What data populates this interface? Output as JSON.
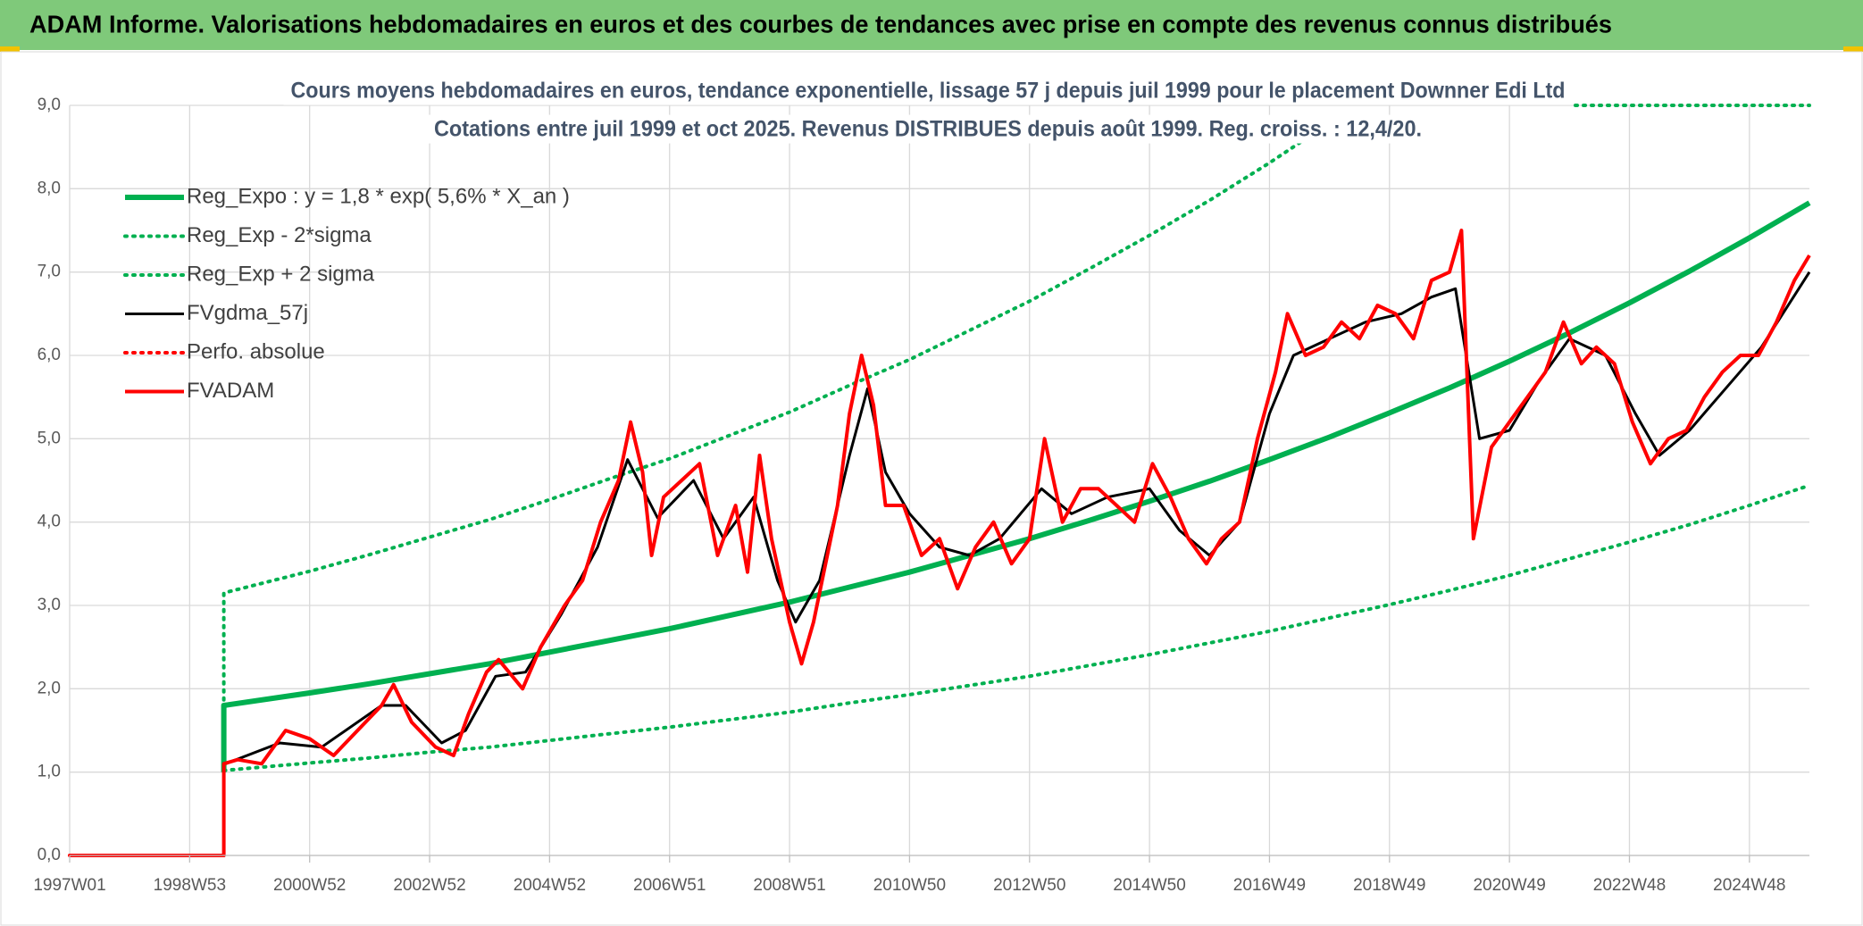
{
  "header": "ADAM Informe. Valorisations hebdomadaires en euros et des courbes de tendances avec prise en compte des revenus connus distribués",
  "chart_data": {
    "type": "line",
    "title": "Cours moyens hebdomadaires en euros, tendance exponentielle, lissage 57 j depuis juil 1999 pour le placement Downner Edi Ltd",
    "subtitle": "Cotations entre juil 1999 et oct 2025. Revenus DISTRIBUES depuis août 1999. Reg. croiss. : 12,4/20.",
    "xlim": [
      1997,
      2026
    ],
    "xticks": [
      {
        "value": 1997,
        "label": "1997W01"
      },
      {
        "value": 1999,
        "label": "1998W53"
      },
      {
        "value": 2001,
        "label": "2000W52"
      },
      {
        "value": 2003,
        "label": "2002W52"
      },
      {
        "value": 2005,
        "label": "2004W52"
      },
      {
        "value": 2007,
        "label": "2006W51"
      },
      {
        "value": 2009,
        "label": "2008W51"
      },
      {
        "value": 2011,
        "label": "2010W50"
      },
      {
        "value": 2013,
        "label": "2012W50"
      },
      {
        "value": 2015,
        "label": "2014W50"
      },
      {
        "value": 2017,
        "label": "2016W49"
      },
      {
        "value": 2019,
        "label": "2018W49"
      },
      {
        "value": 2021,
        "label": "2020W49"
      },
      {
        "value": 2023,
        "label": "2022W48"
      },
      {
        "value": 2025,
        "label": "2024W48"
      }
    ],
    "ylim": [
      0,
      9
    ],
    "yticks": [
      {
        "value": 0,
        "label": "0,0"
      },
      {
        "value": 1,
        "label": "1,0"
      },
      {
        "value": 2,
        "label": "2,0"
      },
      {
        "value": 3,
        "label": "3,0"
      },
      {
        "value": 4,
        "label": "4,0"
      },
      {
        "value": 5,
        "label": "5,0"
      },
      {
        "value": 6,
        "label": "6,0"
      },
      {
        "value": 7,
        "label": "7,0"
      },
      {
        "value": 8,
        "label": "8,0"
      },
      {
        "value": 9,
        "label": "9,0"
      }
    ],
    "grid": true,
    "legend": "top-left",
    "series": [
      {
        "name": "Reg_Expo : y = 1,8 * exp( 5,6% *  X_an )",
        "color": "#00b050",
        "style": "solid",
        "width": 6,
        "x": [
          1999.57,
          1999.57,
          2001,
          2002,
          2003,
          2004,
          2005,
          2006,
          2007,
          2008,
          2009,
          2010,
          2011,
          2012,
          2013,
          2014,
          2015,
          2016,
          2017,
          2018,
          2019,
          2020,
          2021,
          2022,
          2023,
          2024,
          2025,
          2026
        ],
        "values": [
          1.0,
          1.8,
          1.95,
          2.06,
          2.18,
          2.3,
          2.44,
          2.58,
          2.72,
          2.88,
          3.04,
          3.22,
          3.4,
          3.6,
          3.8,
          4.02,
          4.25,
          4.49,
          4.75,
          5.02,
          5.31,
          5.61,
          5.93,
          6.27,
          6.63,
          7.01,
          7.41,
          7.83
        ]
      },
      {
        "name": "Reg_Exp - 2*sigma",
        "color": "#00b050",
        "style": "dotted",
        "width": 4,
        "x": [
          1999.57,
          2001,
          2002,
          2003,
          2004,
          2005,
          2006,
          2007,
          2008,
          2009,
          2010,
          2011,
          2012,
          2013,
          2014,
          2015,
          2016,
          2017,
          2018,
          2019,
          2020,
          2021,
          2022,
          2023,
          2024,
          2025,
          2026
        ],
        "values": [
          1.02,
          1.11,
          1.17,
          1.24,
          1.3,
          1.38,
          1.46,
          1.54,
          1.63,
          1.72,
          1.83,
          1.93,
          2.04,
          2.15,
          2.28,
          2.41,
          2.55,
          2.69,
          2.85,
          3.01,
          3.18,
          3.36,
          3.56,
          3.76,
          3.97,
          4.2,
          4.44
        ]
      },
      {
        "name": "Reg_Exp + 2 sigma",
        "color": "#00b050",
        "style": "dotted",
        "width": 4,
        "x": [
          1999.57,
          1999.57,
          2001,
          2002,
          2003,
          2004,
          2005,
          2006,
          2007,
          2008,
          2009,
          2010,
          2011,
          2012,
          2013,
          2014,
          2015,
          2016,
          2017,
          2018,
          2020,
          2022.1,
          2026
        ],
        "values": [
          1.0,
          3.15,
          3.41,
          3.61,
          3.82,
          4.03,
          4.27,
          4.52,
          4.76,
          5.04,
          5.32,
          5.64,
          5.95,
          6.3,
          6.65,
          7.04,
          7.44,
          7.86,
          8.31,
          8.79,
          null,
          9.0,
          9.0
        ]
      },
      {
        "name": "FVgdma_57j",
        "color": "#000000",
        "style": "solid",
        "width": 3,
        "x": [
          1999.6,
          2000.5,
          2001.2,
          2002.2,
          2002.6,
          2003.2,
          2003.6,
          2004.1,
          2004.6,
          2005.2,
          2005.8,
          2006.3,
          2006.8,
          2007.4,
          2007.9,
          2008.4,
          2008.8,
          2009.1,
          2009.5,
          2010.0,
          2010.3,
          2010.6,
          2011.0,
          2011.5,
          2012.0,
          2012.5,
          2013.2,
          2013.7,
          2014.3,
          2015.0,
          2015.5,
          2016.0,
          2016.5,
          2017.0,
          2017.4,
          2018.0,
          2018.6,
          2019.2,
          2019.7,
          2020.1,
          2020.5,
          2021.0,
          2021.5,
          2022.0,
          2022.6,
          2023.1,
          2023.5,
          2024.0,
          2024.6,
          2025.2,
          2026.0
        ],
        "values": [
          1.1,
          1.35,
          1.3,
          1.8,
          1.8,
          1.35,
          1.5,
          2.15,
          2.2,
          2.9,
          3.7,
          4.75,
          4.05,
          4.5,
          3.8,
          4.3,
          3.3,
          2.8,
          3.3,
          4.8,
          5.6,
          4.6,
          4.1,
          3.7,
          3.6,
          3.8,
          4.4,
          4.1,
          4.3,
          4.4,
          3.9,
          3.6,
          4.0,
          5.3,
          6.0,
          6.2,
          6.4,
          6.5,
          6.7,
          6.8,
          5.0,
          5.1,
          5.7,
          6.2,
          6.0,
          5.3,
          4.8,
          5.1,
          5.6,
          6.1,
          7.0
        ]
      },
      {
        "name": "Perfo. absolue",
        "color": "#ff0000",
        "style": "dotted",
        "width": 4,
        "x": [
          1997,
          1999.57
        ],
        "values": [
          0,
          0
        ]
      },
      {
        "name": "FVADAM",
        "color": "#ff0000",
        "style": "solid",
        "width": 4,
        "x": [
          1997,
          1999.57,
          1999.57,
          1999.8,
          2000.2,
          2000.6,
          2001.0,
          2001.4,
          2001.8,
          2002.2,
          2002.4,
          2002.7,
          2003.1,
          2003.4,
          2003.65,
          2003.95,
          2004.15,
          2004.55,
          2004.85,
          2005.25,
          2005.55,
          2005.85,
          2006.15,
          2006.35,
          2006.55,
          2006.7,
          2006.9,
          2007.2,
          2007.5,
          2007.8,
          2008.1,
          2008.3,
          2008.5,
          2008.7,
          2009.0,
          2009.2,
          2009.4,
          2009.6,
          2009.8,
          2010.0,
          2010.2,
          2010.4,
          2010.6,
          2010.9,
          2011.2,
          2011.5,
          2011.8,
          2012.1,
          2012.4,
          2012.7,
          2013.0,
          2013.25,
          2013.55,
          2013.85,
          2014.15,
          2014.45,
          2014.75,
          2015.05,
          2015.35,
          2015.65,
          2015.95,
          2016.2,
          2016.5,
          2016.8,
          2017.1,
          2017.3,
          2017.6,
          2017.9,
          2018.2,
          2018.5,
          2018.8,
          2019.1,
          2019.4,
          2019.7,
          2020.0,
          2020.2,
          2020.4,
          2020.7,
          2021.0,
          2021.3,
          2021.6,
          2021.9,
          2022.2,
          2022.45,
          2022.75,
          2023.05,
          2023.35,
          2023.65,
          2023.95,
          2024.25,
          2024.55,
          2024.85,
          2025.15,
          2025.45,
          2025.75,
          2026.0
        ],
        "values": [
          0,
          0,
          1.1,
          1.15,
          1.1,
          1.5,
          1.4,
          1.2,
          1.5,
          1.8,
          2.05,
          1.6,
          1.3,
          1.2,
          1.7,
          2.2,
          2.35,
          2.0,
          2.5,
          3.0,
          3.3,
          4.0,
          4.5,
          5.2,
          4.6,
          3.6,
          4.3,
          4.5,
          4.7,
          3.6,
          4.2,
          3.4,
          4.8,
          3.8,
          2.8,
          2.3,
          2.8,
          3.5,
          4.2,
          5.3,
          6.0,
          5.4,
          4.2,
          4.2,
          3.6,
          3.8,
          3.2,
          3.7,
          4.0,
          3.5,
          3.8,
          5.0,
          4.0,
          4.4,
          4.4,
          4.2,
          4.0,
          4.7,
          4.3,
          3.8,
          3.5,
          3.8,
          4.0,
          5.0,
          5.8,
          6.5,
          6.0,
          6.1,
          6.4,
          6.2,
          6.6,
          6.5,
          6.2,
          6.9,
          7.0,
          7.5,
          3.8,
          4.9,
          5.2,
          5.5,
          5.8,
          6.4,
          5.9,
          6.1,
          5.9,
          5.2,
          4.7,
          5.0,
          5.1,
          5.5,
          5.8,
          6.0,
          6.0,
          6.4,
          6.9,
          7.2
        ]
      }
    ]
  }
}
